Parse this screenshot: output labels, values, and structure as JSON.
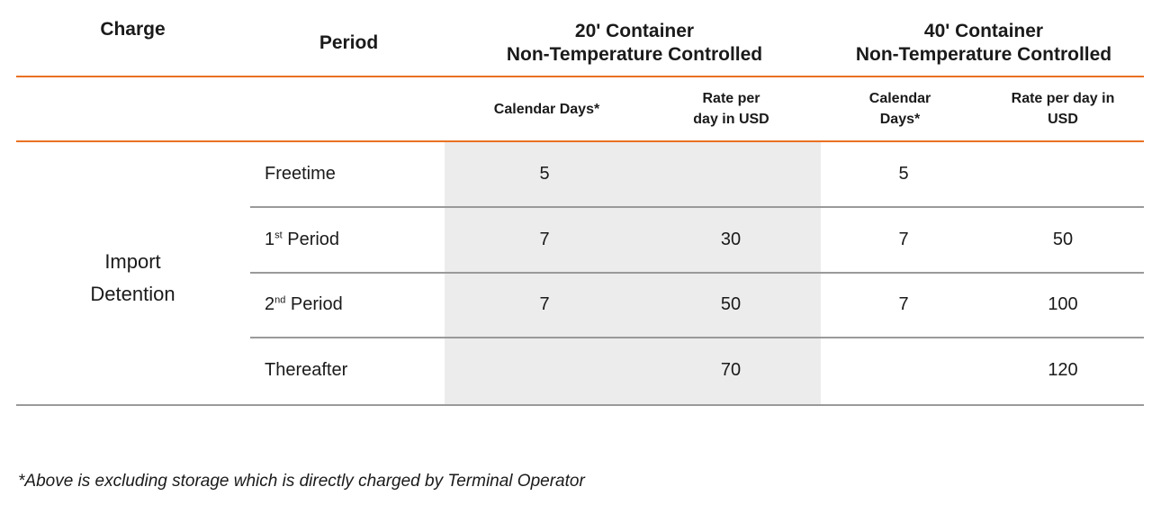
{
  "header": {
    "charge": "Charge",
    "period": "Period",
    "c20_line1": "20' Container",
    "c20_line2": "Non-Temperature Controlled",
    "c40_line1": "40' Container",
    "c40_line2": "Non-Temperature Controlled"
  },
  "subheader": {
    "c20_days": "Calendar Days*",
    "c20_rate_line1": "Rate per",
    "c20_rate_line2": "day in USD",
    "c40_days_line1": "Calendar",
    "c40_days_line2": "Days*",
    "c40_rate_line1": "Rate per day in",
    "c40_rate_line2": "USD"
  },
  "charge": {
    "line1": "Import",
    "line2": "Detention"
  },
  "rows": [
    {
      "period": "Freetime",
      "c20_days": "5",
      "c20_rate": "",
      "c40_days": "5",
      "c40_rate": ""
    },
    {
      "period_num": "1",
      "period_sup": "st",
      "period_text": " Period",
      "c20_days": "7",
      "c20_rate": "30",
      "c40_days": "7",
      "c40_rate": "50"
    },
    {
      "period_num": "2",
      "period_sup": "nd",
      "period_text": " Period",
      "c20_days": "7",
      "c20_rate": "50",
      "c40_days": "7",
      "c40_rate": "100"
    },
    {
      "period": "Thereafter",
      "c20_days": "",
      "c20_rate": "70",
      "c40_days": "",
      "c40_rate": "120"
    }
  ],
  "footnote": "*Above is excluding storage which is directly charged by Terminal Operator",
  "colors": {
    "accent_line": "#ea7123",
    "row_line": "#9a9a9a",
    "shade": "#ececec"
  }
}
